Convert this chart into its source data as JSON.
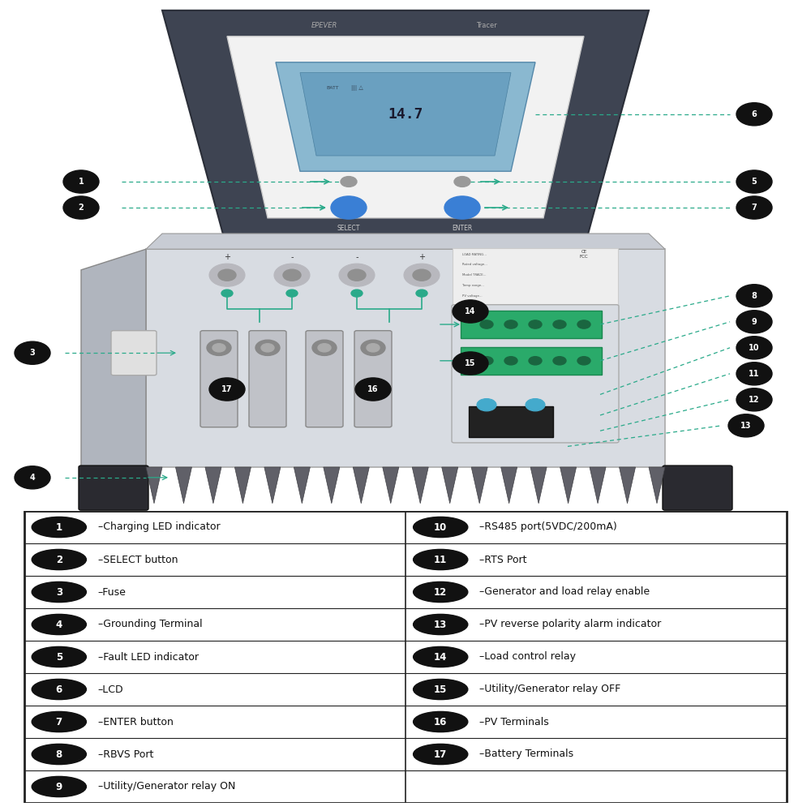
{
  "bg_color": "#ffffff",
  "table_border_color": "#222222",
  "label_bg_color": "#111111",
  "label_text_color": "#ffffff",
  "line_color": "#2aaa8a",
  "table_rows": [
    [
      "1",
      "Charging LED indicator",
      "10",
      "RS485 port(5VDC/200mA)"
    ],
    [
      "2",
      "SELECT button",
      "11",
      "RTS Port"
    ],
    [
      "3",
      "Fuse",
      "12",
      "Generator and load relay enable"
    ],
    [
      "4",
      "Grounding Terminal",
      "13",
      "PV reverse polarity alarm indicator"
    ],
    [
      "5",
      "Fault LED indicator",
      "14",
      "Load control relay"
    ],
    [
      "6",
      "LCD",
      "15",
      "Utility/Generator relay OFF"
    ],
    [
      "7",
      "ENTER button",
      "16",
      "PV Terminals"
    ],
    [
      "8",
      "RBVS Port",
      "17",
      "Battery Terminals"
    ],
    [
      "9",
      "Utility/Generator relay ON",
      "",
      ""
    ]
  ]
}
